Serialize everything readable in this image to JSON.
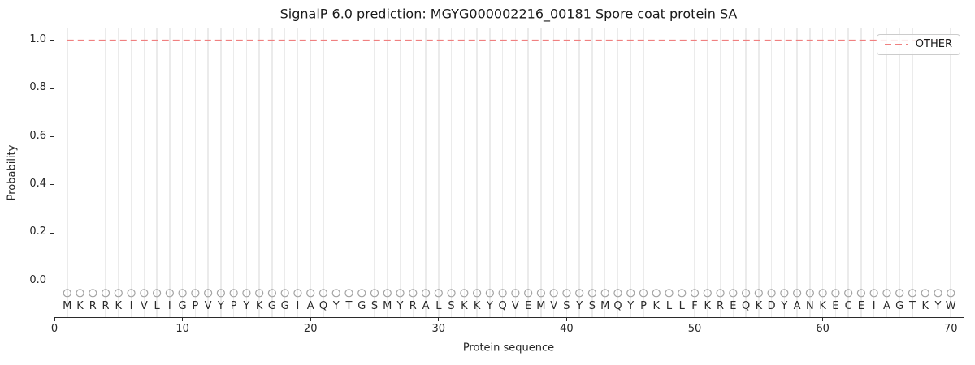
{
  "chart_data": {
    "type": "line",
    "title": "SignalP 6.0 prediction: MGYG000002216_00181 Spore coat protein SA",
    "xlabel": "Protein sequence",
    "ylabel": "Probability",
    "xlim": [
      0,
      71
    ],
    "ylim": [
      -0.15,
      1.05
    ],
    "x_ticks": [
      0,
      10,
      20,
      30,
      40,
      50,
      60,
      70
    ],
    "y_ticks": [
      0.0,
      0.2,
      0.4,
      0.6,
      0.8,
      1.0
    ],
    "grid": "vertical gridline at every residue position 1-70",
    "series": [
      {
        "name": "OTHER",
        "linestyle": "dashed",
        "color": "#f08080",
        "constant_value": 1.0,
        "x_range": [
          1,
          70
        ],
        "description": "OTHER probability is constant at 1.0 for all 70 residue positions"
      }
    ],
    "sequence": "MKRRKIVLIGPVYPYKGGIAQYTGSMYRALSKKYQVEMVSYSMQYPKLLFKREQKDYANKECEIAGTKYW",
    "sequence_length": 70,
    "marker_y": -0.05,
    "letter_y": -0.105,
    "legend": {
      "position": "upper right",
      "entries": [
        {
          "label": "OTHER",
          "color": "#f08080",
          "style": "dashed"
        }
      ]
    },
    "colors": {
      "line": "#f08080",
      "gridline": "#ebebeb",
      "marker_outline": "#a3a3a3",
      "spine": "#2b2b2b",
      "text": "#262626",
      "legend_border": "#cccccc",
      "background": "#ffffff"
    }
  }
}
